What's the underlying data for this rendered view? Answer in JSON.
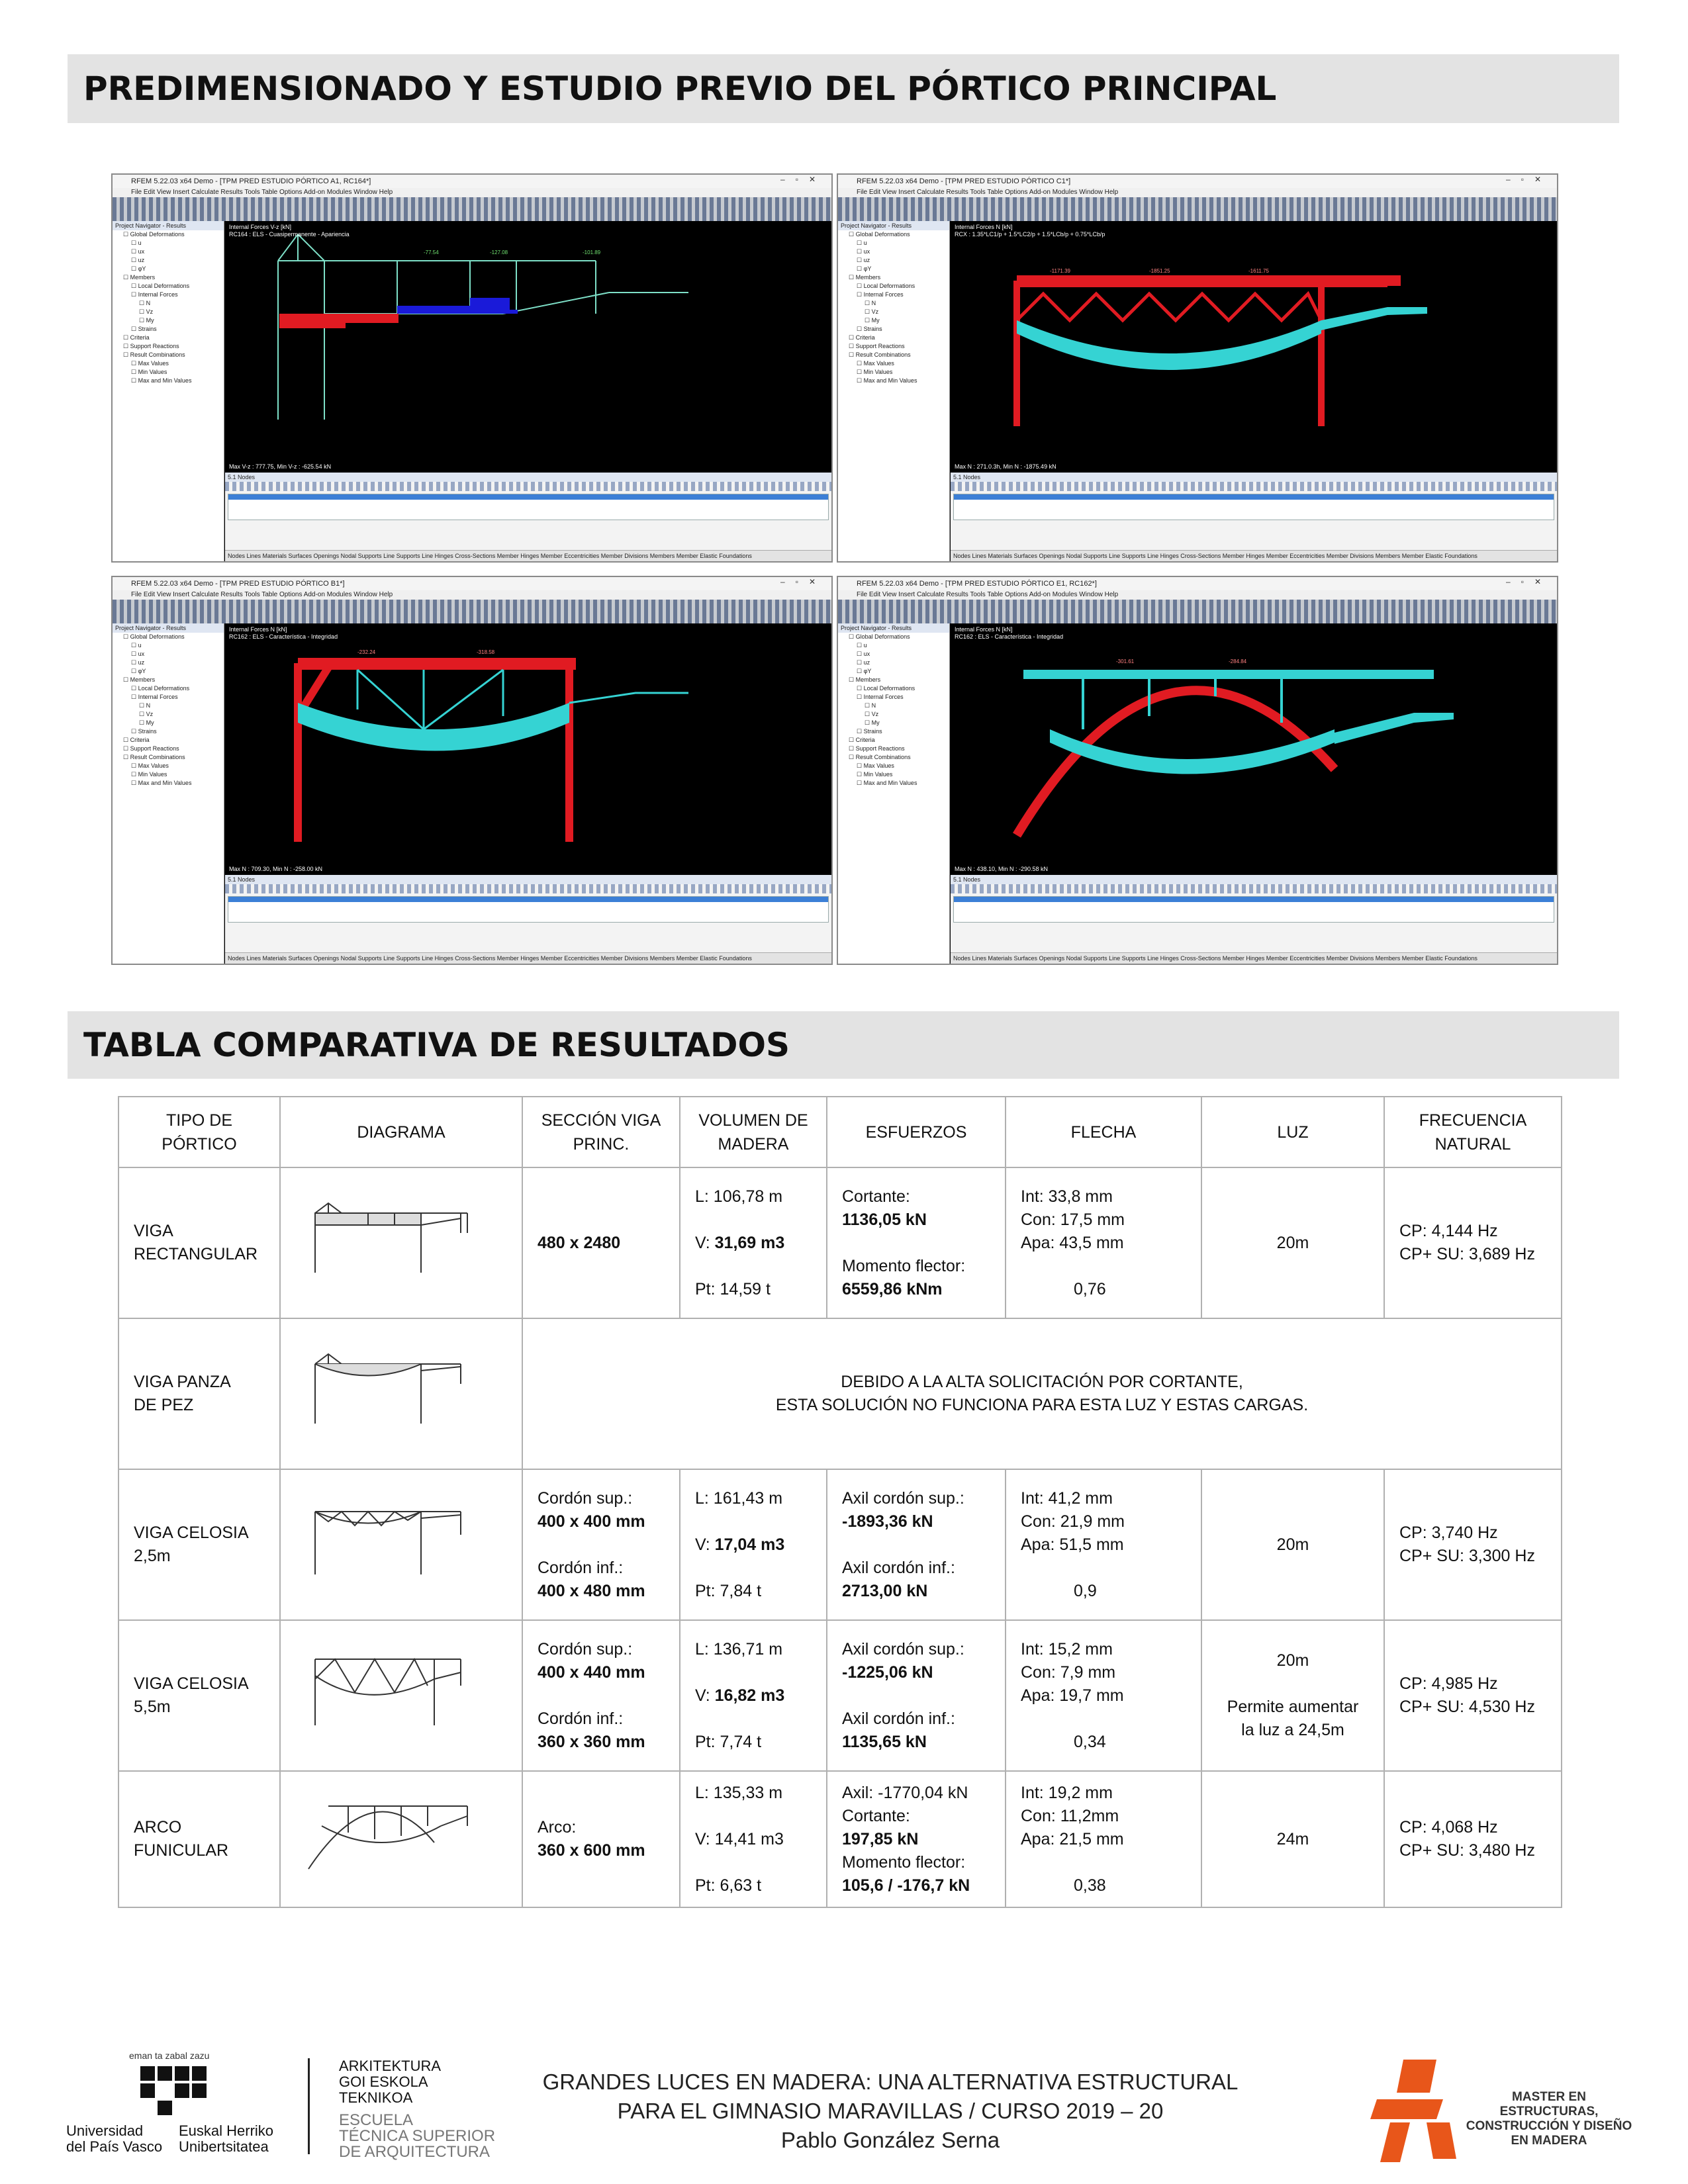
{
  "section1": {
    "title": "PREDIMENSIONADO Y ESTUDIO PREVIO DEL PÓRTICO PRINCIPAL"
  },
  "screenshots": [
    {
      "title": "RFEM 5.22.03 x64 Demo - [TPM PRED ESTUDIO PÓRTICO A1, RC164*]",
      "canvas_info": "Internal Forces V-z [kN]",
      "canvas_sub": "RC164 : ELS - Cuasipermanente - Apariencia",
      "canvas_bottom": "Max V-z : 777.75, Min V-z : -625.54 kN"
    },
    {
      "title": "RFEM 5.22.03 x64 Demo - [TPM PRED ESTUDIO PÓRTICO C1*]",
      "canvas_info": "Internal Forces N [kN]",
      "canvas_sub": "RCX : 1.35*LC1/p + 1.5*LC2/p + 1.5*LCb/p + 0.75*LCb/p",
      "canvas_bottom": "Max N : 271.0.3h, Min N : -1875.49 kN"
    },
    {
      "title": "RFEM 5.22.03 x64 Demo - [TPM PRED ESTUDIO PÓRTICO B1*]",
      "canvas_info": "Internal Forces N [kN]",
      "canvas_sub": "RC162 : ELS - Característica - Integridad",
      "canvas_bottom": "Max N : 709.30, Min N : -258.00 kN"
    },
    {
      "title": "RFEM 5.22.03 x64 Demo - [TPM PRED ESTUDIO PÓRTICO E1, RC162*]",
      "canvas_info": "Internal Forces N [kN]",
      "canvas_sub": "RC162 : ELS - Característica - Integridad",
      "canvas_bottom": "Max N : 438.10, Min N : -290.58 kN"
    }
  ],
  "rfem_ui": {
    "menu": "File  Edit  View  Insert  Calculate  Results  Tools  Table  Options  Add-on Modules  Window  Help",
    "nav_header": "Project Navigator - Results",
    "nav_items": [
      "Global Deformations",
      "u",
      "ux",
      "uz",
      "φY",
      "Members",
      "Local Deformations",
      "Internal Forces",
      "N",
      "Vz",
      "My",
      "Strains",
      "Criteria",
      "Support Reactions",
      "Result Combinations",
      "Max Values",
      "Min Values",
      "Max and Min Values"
    ],
    "panel_header": "5.1 Nodes",
    "tabs": "Nodes  Lines  Materials  Surfaces  Openings  Nodal Supports  Line Supports  Line Hinges  Cross-Sections  Member Hinges  Member Eccentricities  Member Divisions  Members  Member Elastic Foundations"
  },
  "section2": {
    "title": "TABLA COMPARATIVA DE RESULTADOS"
  },
  "table": {
    "headers": [
      "TIPO DE PÓRTICO",
      "DIAGRAMA",
      "SECCIÓN VIGA PRINC.",
      "VOLUMEN DE MADERA",
      "ESFUERZOS",
      "FLECHA",
      "LUZ",
      "FRECUENCIA NATURAL"
    ],
    "rows": [
      {
        "tipo": [
          "VIGA",
          "RECTANGULAR"
        ],
        "seccion": [
          {
            "t": "480 x 2480",
            "b": true
          }
        ],
        "volumen": {
          "l": "L: 106,78 m",
          "v_pre": "V: ",
          "v": "31,69 m3",
          "pt": "Pt: 14,59 t"
        },
        "esfuerzos": [
          {
            "t": "Cortante:"
          },
          {
            "t": "1136,05 kN",
            "b": true
          },
          {
            "t": ""
          },
          {
            "t": "Momento flector:"
          },
          {
            "t": "6559,86 kNm",
            "b": true
          }
        ],
        "flecha": [
          "Int: 33,8 mm",
          "Con: 17,5 mm",
          "Apa: 43,5 mm",
          "0,76"
        ],
        "luz": [
          "20m"
        ],
        "frecuencia": [
          "CP: 4,144 Hz",
          "CP+ SU: 3,689 Hz"
        ]
      },
      {
        "tipo": [
          "VIGA PANZA",
          "DE PEZ"
        ],
        "merged": [
          "DEBIDO A LA ALTA SOLICITACIÓN POR CORTANTE,",
          "ESTA SOLUCIÓN NO FUNCIONA PARA ESTA LUZ Y ESTAS CARGAS."
        ]
      },
      {
        "tipo": [
          "VIGA CELOSIA",
          "2,5m"
        ],
        "seccion": [
          {
            "t": "Cordón sup.:"
          },
          {
            "t": "400 x 400 mm",
            "b": true
          },
          {
            "t": ""
          },
          {
            "t": "Cordón inf.:"
          },
          {
            "t": "400 x 480 mm",
            "b": true
          }
        ],
        "volumen": {
          "l": "L: 161,43 m",
          "v_pre": "V: ",
          "v": "17,04 m3",
          "pt": "Pt: 7,84 t"
        },
        "esfuerzos": [
          {
            "t": "Axil cordón sup.:"
          },
          {
            "t": "-1893,36 kN",
            "b": true
          },
          {
            "t": ""
          },
          {
            "t": "Axil cordón inf.:"
          },
          {
            "t": "2713,00 kN",
            "b": true
          }
        ],
        "flecha": [
          "Int: 41,2 mm",
          "Con: 21,9 mm",
          "Apa: 51,5 mm",
          "0,9"
        ],
        "luz": [
          "20m"
        ],
        "frecuencia": [
          "CP: 3,740 Hz",
          "CP+ SU: 3,300 Hz"
        ]
      },
      {
        "tipo": [
          "VIGA CELOSIA",
          "5,5m"
        ],
        "seccion": [
          {
            "t": "Cordón sup.:"
          },
          {
            "t": "400 x 440 mm",
            "b": true
          },
          {
            "t": ""
          },
          {
            "t": "Cordón inf.:"
          },
          {
            "t": "360 x 360 mm",
            "b": true
          }
        ],
        "volumen": {
          "l": "L: 136,71 m",
          "v_pre": "V: ",
          "v": "16,82 m3",
          "pt": "Pt: 7,74 t"
        },
        "esfuerzos": [
          {
            "t": "Axil cordón sup.:"
          },
          {
            "t": "-1225,06 kN",
            "b": true
          },
          {
            "t": ""
          },
          {
            "t": "Axil cordón inf.:"
          },
          {
            "t": "1135,65 kN",
            "b": true
          }
        ],
        "flecha": [
          "Int: 15,2 mm",
          "Con: 7,9 mm",
          "Apa: 19,7 mm",
          "0,34"
        ],
        "luz": [
          "20m",
          "",
          "Permite aumentar",
          "la luz a 24,5m"
        ],
        "frecuencia": [
          "CP: 4,985 Hz",
          "CP+ SU: 4,530 Hz"
        ]
      },
      {
        "tipo": [
          "ARCO",
          "FUNICULAR"
        ],
        "seccion": [
          {
            "t": "Arco:"
          },
          {
            "t": "360 x 600 mm",
            "b": true
          }
        ],
        "volumen": {
          "l": "L:  135,33 m",
          "v_pre": "V: 14,41 m3",
          "v": "",
          "pt": "Pt: 6,63 t"
        },
        "esfuerzos": [
          {
            "t": "Axil: -1770,04 kN",
            "b": false
          },
          {
            "t": "Cortante:"
          },
          {
            "t": "197,85 kN",
            "b": true
          },
          {
            "t": "Momento flector:"
          },
          {
            "t": "105,6 / -176,7 kN",
            "b": true
          }
        ],
        "flecha": [
          "Int: 19,2 mm",
          "Con: 11,2mm",
          "Apa: 21,5 mm",
          "0,38"
        ],
        "luz": [
          "24m"
        ],
        "frecuencia": [
          "CP: 4,068 Hz",
          "CP+ SU: 3,480 Hz"
        ]
      }
    ]
  },
  "footer": {
    "line1": "GRANDES LUCES EN MADERA: UNA ALTERNATIVA ESTRUCTURAL",
    "line2": "PARA EL GIMNASIO MARAVILLAS / CURSO 2019 – 20",
    "line3": "Pablo González Serna",
    "ehu_motto": "eman ta zabal zazu",
    "ehu_left": [
      "Universidad",
      "del País Vasco"
    ],
    "ehu_right": [
      "Euskal Herriko",
      "Unibertsitatea"
    ],
    "etsa_black": [
      "ARKITEKTURA",
      "GOI ESKOLA",
      "TEKNIKOA"
    ],
    "etsa_grey": [
      "ESCUELA",
      "TÉCNICA SUPERIOR",
      "DE ARQUITECTURA"
    ],
    "master": [
      "MASTER EN ESTRUCTURAS,",
      "CONSTRUCCIÓN Y DISEÑO",
      "EN MADERA"
    ]
  },
  "colors": {
    "band": "#e3e3e3",
    "compression": "#e11b22",
    "tension": "#35d3d3",
    "master_orange": "#e8561a"
  }
}
